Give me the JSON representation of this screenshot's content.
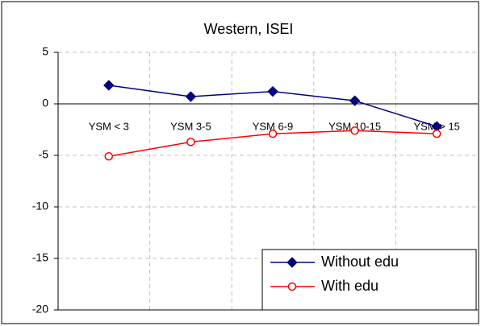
{
  "chart_data": {
    "type": "line",
    "title": "Western, ISEI",
    "categories": [
      "YSM < 3",
      "YSM 3-5",
      "YSM 6-9",
      "YSM 10-15",
      "YSM > 15"
    ],
    "series": [
      {
        "name": "Without edu",
        "color": "#000080",
        "marker": "diamond",
        "values": [
          1.8,
          0.7,
          1.2,
          0.3,
          -2.2
        ]
      },
      {
        "name": "With edu",
        "color": "#ff0000",
        "marker": "open-circle",
        "values": [
          -5.1,
          -3.7,
          -2.9,
          -2.6,
          -2.9
        ]
      }
    ],
    "ylim": [
      -20,
      5
    ],
    "yticks": [
      -20,
      -15,
      -10,
      -5,
      0,
      5
    ],
    "grid": true,
    "legend": "lower right"
  }
}
